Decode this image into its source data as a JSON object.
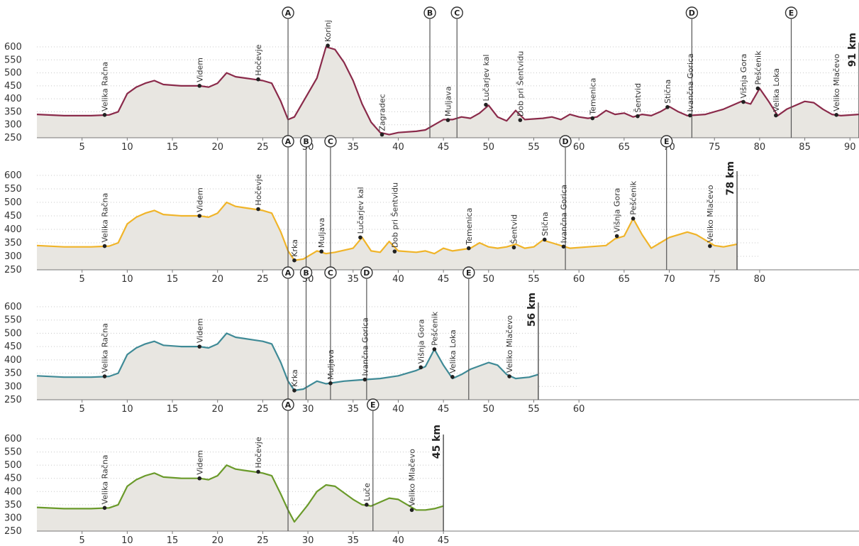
{
  "chart_data": [
    {
      "type": "area",
      "title": "",
      "xlabel": "",
      "ylabel": "",
      "total_label": "91 km",
      "xlim": [
        0,
        91
      ],
      "ylim": [
        250,
        600
      ],
      "line_color": "#8a2a4a",
      "fill_color": "#e8e6e1",
      "yticks": [
        "250",
        "300",
        "350",
        "400",
        "450",
        "500",
        "550",
        "600"
      ],
      "xticks": [
        5,
        10,
        15,
        20,
        25,
        30,
        35,
        40,
        45,
        50,
        55,
        60,
        65,
        70,
        75,
        80,
        85,
        90
      ],
      "profile": [
        [
          0,
          340
        ],
        [
          3,
          335
        ],
        [
          6,
          335
        ],
        [
          8,
          338
        ],
        [
          9,
          350
        ],
        [
          10,
          420
        ],
        [
          11,
          445
        ],
        [
          12,
          460
        ],
        [
          13,
          470
        ],
        [
          14,
          455
        ],
        [
          16,
          450
        ],
        [
          18,
          450
        ],
        [
          19,
          445
        ],
        [
          20,
          460
        ],
        [
          21,
          500
        ],
        [
          22,
          485
        ],
        [
          23,
          480
        ],
        [
          24,
          475
        ],
        [
          25,
          470
        ],
        [
          26,
          460
        ],
        [
          27,
          390
        ],
        [
          27.8,
          320
        ],
        [
          28.5,
          330
        ],
        [
          30,
          420
        ],
        [
          31,
          480
        ],
        [
          32,
          600
        ],
        [
          33,
          590
        ],
        [
          34,
          540
        ],
        [
          35,
          470
        ],
        [
          36,
          380
        ],
        [
          37,
          310
        ],
        [
          38,
          270
        ],
        [
          39,
          262
        ],
        [
          40,
          270
        ],
        [
          42,
          275
        ],
        [
          43,
          280
        ],
        [
          44,
          300
        ],
        [
          45,
          320
        ],
        [
          46,
          320
        ],
        [
          47,
          330
        ],
        [
          48,
          325
        ],
        [
          49,
          345
        ],
        [
          50,
          375
        ],
        [
          51,
          330
        ],
        [
          52,
          315
        ],
        [
          53,
          355
        ],
        [
          54,
          320
        ],
        [
          56,
          325
        ],
        [
          57,
          330
        ],
        [
          58,
          320
        ],
        [
          59,
          340
        ],
        [
          60,
          330
        ],
        [
          61,
          325
        ],
        [
          62,
          330
        ],
        [
          63,
          355
        ],
        [
          64,
          340
        ],
        [
          65,
          345
        ],
        [
          66,
          330
        ],
        [
          67,
          340
        ],
        [
          68,
          335
        ],
        [
          69,
          350
        ],
        [
          70,
          370
        ],
        [
          71,
          350
        ],
        [
          72,
          335
        ],
        [
          74,
          340
        ],
        [
          76,
          360
        ],
        [
          78,
          390
        ],
        [
          79,
          380
        ],
        [
          80,
          440
        ],
        [
          81,
          390
        ],
        [
          82,
          335
        ],
        [
          83,
          360
        ],
        [
          85,
          390
        ],
        [
          86,
          385
        ],
        [
          87,
          360
        ],
        [
          88,
          340
        ],
        [
          89,
          335
        ],
        [
          91,
          340
        ]
      ],
      "checkpoints": [
        {
          "label": "A",
          "x": 27.8
        },
        {
          "label": "B",
          "x": 43.5
        },
        {
          "label": "C",
          "x": 46.5
        },
        {
          "label": "D",
          "x": 72.5
        },
        {
          "label": "E",
          "x": 83.5
        }
      ],
      "places": [
        {
          "name": "Velika Račna",
          "x": 7.5,
          "y": 338
        },
        {
          "name": "Videm",
          "x": 18,
          "y": 450
        },
        {
          "name": "Hočevje",
          "x": 24.5,
          "y": 475
        },
        {
          "name": "Korinj",
          "x": 32.2,
          "y": 605
        },
        {
          "name": "Zagradec",
          "x": 38.2,
          "y": 262
        },
        {
          "name": "Muljava",
          "x": 45.5,
          "y": 318
        },
        {
          "name": "Lučarjev kal",
          "x": 49.7,
          "y": 377
        },
        {
          "name": "Dob pri Šentvidu",
          "x": 53.5,
          "y": 318
        },
        {
          "name": "Temenica",
          "x": 61.5,
          "y": 325
        },
        {
          "name": "Šentvid",
          "x": 66.5,
          "y": 333
        },
        {
          "name": "Stična",
          "x": 69.8,
          "y": 368
        },
        {
          "name": "Ivančna Gorica",
          "x": 72.3,
          "y": 336
        },
        {
          "name": "Višnja Gora",
          "x": 78.2,
          "y": 388
        },
        {
          "name": "Pešćenik",
          "x": 79.8,
          "y": 440
        },
        {
          "name": "Velika Loka",
          "x": 81.8,
          "y": 336
        },
        {
          "name": "Veliko Mlačevo",
          "x": 88.5,
          "y": 338
        }
      ]
    },
    {
      "type": "area",
      "title": "",
      "xlabel": "",
      "ylabel": "",
      "total_label": "78 km",
      "xlim": [
        0,
        91
      ],
      "ylim": [
        250,
        600
      ],
      "line_color": "#f0b429",
      "fill_color": "#e8e6e1",
      "yticks": [
        "250",
        "300",
        "350",
        "400",
        "450",
        "500",
        "550",
        "600"
      ],
      "xticks": [
        5,
        10,
        15,
        20,
        25,
        30,
        35,
        40,
        45,
        50,
        55,
        60,
        65,
        70,
        75,
        80
      ],
      "profile": [
        [
          0,
          340
        ],
        [
          3,
          335
        ],
        [
          6,
          335
        ],
        [
          8,
          338
        ],
        [
          9,
          350
        ],
        [
          10,
          420
        ],
        [
          11,
          445
        ],
        [
          12,
          460
        ],
        [
          13,
          470
        ],
        [
          14,
          455
        ],
        [
          16,
          450
        ],
        [
          18,
          450
        ],
        [
          19,
          445
        ],
        [
          20,
          460
        ],
        [
          21,
          500
        ],
        [
          22,
          485
        ],
        [
          23,
          480
        ],
        [
          24,
          475
        ],
        [
          25,
          470
        ],
        [
          26,
          460
        ],
        [
          27,
          390
        ],
        [
          27.8,
          320
        ],
        [
          28.5,
          285
        ],
        [
          29.5,
          290
        ],
        [
          31,
          320
        ],
        [
          32,
          310
        ],
        [
          33,
          315
        ],
        [
          35,
          330
        ],
        [
          36,
          370
        ],
        [
          37,
          320
        ],
        [
          38,
          315
        ],
        [
          39,
          355
        ],
        [
          40,
          320
        ],
        [
          42,
          315
        ],
        [
          43,
          320
        ],
        [
          44,
          310
        ],
        [
          45,
          330
        ],
        [
          46,
          320
        ],
        [
          47,
          325
        ],
        [
          48,
          330
        ],
        [
          49,
          350
        ],
        [
          50,
          335
        ],
        [
          51,
          330
        ],
        [
          52,
          335
        ],
        [
          53,
          345
        ],
        [
          54,
          330
        ],
        [
          55,
          335
        ],
        [
          56,
          360
        ],
        [
          57,
          350
        ],
        [
          58,
          340
        ],
        [
          59,
          330
        ],
        [
          61,
          335
        ],
        [
          63,
          340
        ],
        [
          64,
          365
        ],
        [
          65,
          375
        ],
        [
          66,
          440
        ],
        [
          67,
          380
        ],
        [
          68,
          330
        ],
        [
          69,
          350
        ],
        [
          70,
          370
        ],
        [
          72,
          390
        ],
        [
          73,
          380
        ],
        [
          74,
          360
        ],
        [
          75,
          340
        ],
        [
          76,
          335
        ],
        [
          77.5,
          345
        ]
      ],
      "checkpoints": [
        {
          "label": "A",
          "x": 27.8
        },
        {
          "label": "B",
          "x": 29.8
        },
        {
          "label": "C",
          "x": 32.5
        },
        {
          "label": "D",
          "x": 58.5
        },
        {
          "label": "E",
          "x": 69.7
        }
      ],
      "places": [
        {
          "name": "Velika Račna",
          "x": 7.5,
          "y": 338
        },
        {
          "name": "Videm",
          "x": 18,
          "y": 450
        },
        {
          "name": "Hočevje",
          "x": 24.5,
          "y": 475
        },
        {
          "name": "Krka",
          "x": 28.5,
          "y": 285
        },
        {
          "name": "Muljava",
          "x": 31.5,
          "y": 318
        },
        {
          "name": "Lučarjev kal",
          "x": 35.8,
          "y": 370
        },
        {
          "name": "Dob pri Šentvidu",
          "x": 39.6,
          "y": 318
        },
        {
          "name": "Temenica",
          "x": 47.8,
          "y": 330
        },
        {
          "name": "Šentvid",
          "x": 52.8,
          "y": 333
        },
        {
          "name": "Stična",
          "x": 56.2,
          "y": 362
        },
        {
          "name": "Ivančna Gorica",
          "x": 58.3,
          "y": 336
        },
        {
          "name": "Višnja Gora",
          "x": 64.2,
          "y": 375
        },
        {
          "name": "Pešćenik",
          "x": 66,
          "y": 440
        },
        {
          "name": "Veliko Mlačevo",
          "x": 74.5,
          "y": 338
        }
      ]
    },
    {
      "type": "area",
      "title": "",
      "xlabel": "",
      "ylabel": "",
      "total_label": "56 km",
      "xlim": [
        0,
        91
      ],
      "ylim": [
        250,
        600
      ],
      "line_color": "#3f8a96",
      "fill_color": "#e8e6e1",
      "yticks": [
        "250",
        "300",
        "350",
        "400",
        "450",
        "500",
        "550",
        "600"
      ],
      "xticks": [
        5,
        10,
        15,
        20,
        25,
        30,
        35,
        40,
        45,
        50,
        55,
        60
      ],
      "profile": [
        [
          0,
          340
        ],
        [
          3,
          335
        ],
        [
          6,
          335
        ],
        [
          8,
          338
        ],
        [
          9,
          350
        ],
        [
          10,
          420
        ],
        [
          11,
          445
        ],
        [
          12,
          460
        ],
        [
          13,
          470
        ],
        [
          14,
          455
        ],
        [
          16,
          450
        ],
        [
          18,
          450
        ],
        [
          19,
          445
        ],
        [
          20,
          460
        ],
        [
          21,
          500
        ],
        [
          22,
          485
        ],
        [
          23,
          480
        ],
        [
          24,
          475
        ],
        [
          25,
          470
        ],
        [
          26,
          460
        ],
        [
          27,
          390
        ],
        [
          27.8,
          320
        ],
        [
          28.5,
          285
        ],
        [
          29.5,
          290
        ],
        [
          31,
          320
        ],
        [
          32,
          310
        ],
        [
          34,
          320
        ],
        [
          36,
          325
        ],
        [
          38,
          330
        ],
        [
          40,
          340
        ],
        [
          42,
          360
        ],
        [
          43,
          375
        ],
        [
          44,
          440
        ],
        [
          45,
          380
        ],
        [
          46,
          330
        ],
        [
          47,
          345
        ],
        [
          48,
          365
        ],
        [
          50,
          390
        ],
        [
          51,
          380
        ],
        [
          52,
          345
        ],
        [
          53,
          330
        ],
        [
          54.5,
          335
        ],
        [
          55.5,
          345
        ]
      ],
      "checkpoints": [
        {
          "label": "A",
          "x": 27.8
        },
        {
          "label": "B",
          "x": 29.8
        },
        {
          "label": "C",
          "x": 32.5
        },
        {
          "label": "D",
          "x": 36.5
        },
        {
          "label": "E",
          "x": 47.8
        }
      ],
      "places": [
        {
          "name": "Velika Račna",
          "x": 7.5,
          "y": 338
        },
        {
          "name": "Videm",
          "x": 18,
          "y": 450
        },
        {
          "name": "Krka",
          "x": 28.5,
          "y": 285
        },
        {
          "name": "Muljava",
          "x": 32.5,
          "y": 312
        },
        {
          "name": "Ivančna Gorica",
          "x": 36.3,
          "y": 326
        },
        {
          "name": "Višnja Gora",
          "x": 42.5,
          "y": 372
        },
        {
          "name": "Pešćenik",
          "x": 44,
          "y": 440
        },
        {
          "name": "Velika Loka",
          "x": 46,
          "y": 336
        },
        {
          "name": "Veliko Mlačevo",
          "x": 52.3,
          "y": 338
        }
      ]
    },
    {
      "type": "area",
      "title": "",
      "xlabel": "",
      "ylabel": "",
      "total_label": "45 km",
      "xlim": [
        0,
        91
      ],
      "ylim": [
        250,
        600
      ],
      "line_color": "#6a9a2a",
      "fill_color": "#e8e6e1",
      "yticks": [
        "250",
        "300",
        "350",
        "400",
        "450",
        "500",
        "550",
        "600"
      ],
      "xticks": [
        5,
        10,
        15,
        20,
        25,
        30,
        35,
        40,
        45
      ],
      "profile": [
        [
          0,
          340
        ],
        [
          3,
          335
        ],
        [
          6,
          335
        ],
        [
          8,
          338
        ],
        [
          9,
          350
        ],
        [
          10,
          420
        ],
        [
          11,
          445
        ],
        [
          12,
          460
        ],
        [
          13,
          470
        ],
        [
          14,
          455
        ],
        [
          16,
          450
        ],
        [
          18,
          450
        ],
        [
          19,
          445
        ],
        [
          20,
          460
        ],
        [
          21,
          500
        ],
        [
          22,
          485
        ],
        [
          23,
          480
        ],
        [
          24,
          475
        ],
        [
          25,
          470
        ],
        [
          26,
          460
        ],
        [
          27,
          390
        ],
        [
          27.8,
          330
        ],
        [
          28.5,
          285
        ],
        [
          30,
          350
        ],
        [
          31,
          400
        ],
        [
          32,
          425
        ],
        [
          33,
          420
        ],
        [
          34,
          395
        ],
        [
          35,
          370
        ],
        [
          36,
          350
        ],
        [
          37,
          345
        ],
        [
          38,
          360
        ],
        [
          39,
          375
        ],
        [
          40,
          370
        ],
        [
          41,
          350
        ],
        [
          42,
          330
        ],
        [
          43,
          330
        ],
        [
          44,
          335
        ],
        [
          45,
          345
        ]
      ],
      "checkpoints": [
        {
          "label": "A",
          "x": 27.8
        },
        {
          "label": "E",
          "x": 37.2
        }
      ],
      "places": [
        {
          "name": "Velika Račna",
          "x": 7.5,
          "y": 338
        },
        {
          "name": "Videm",
          "x": 18,
          "y": 450
        },
        {
          "name": "Hočevje",
          "x": 24.5,
          "y": 475
        },
        {
          "name": "Luče",
          "x": 36.5,
          "y": 350
        },
        {
          "name": "Veliko Mlačevo",
          "x": 41.5,
          "y": 330
        }
      ]
    }
  ]
}
